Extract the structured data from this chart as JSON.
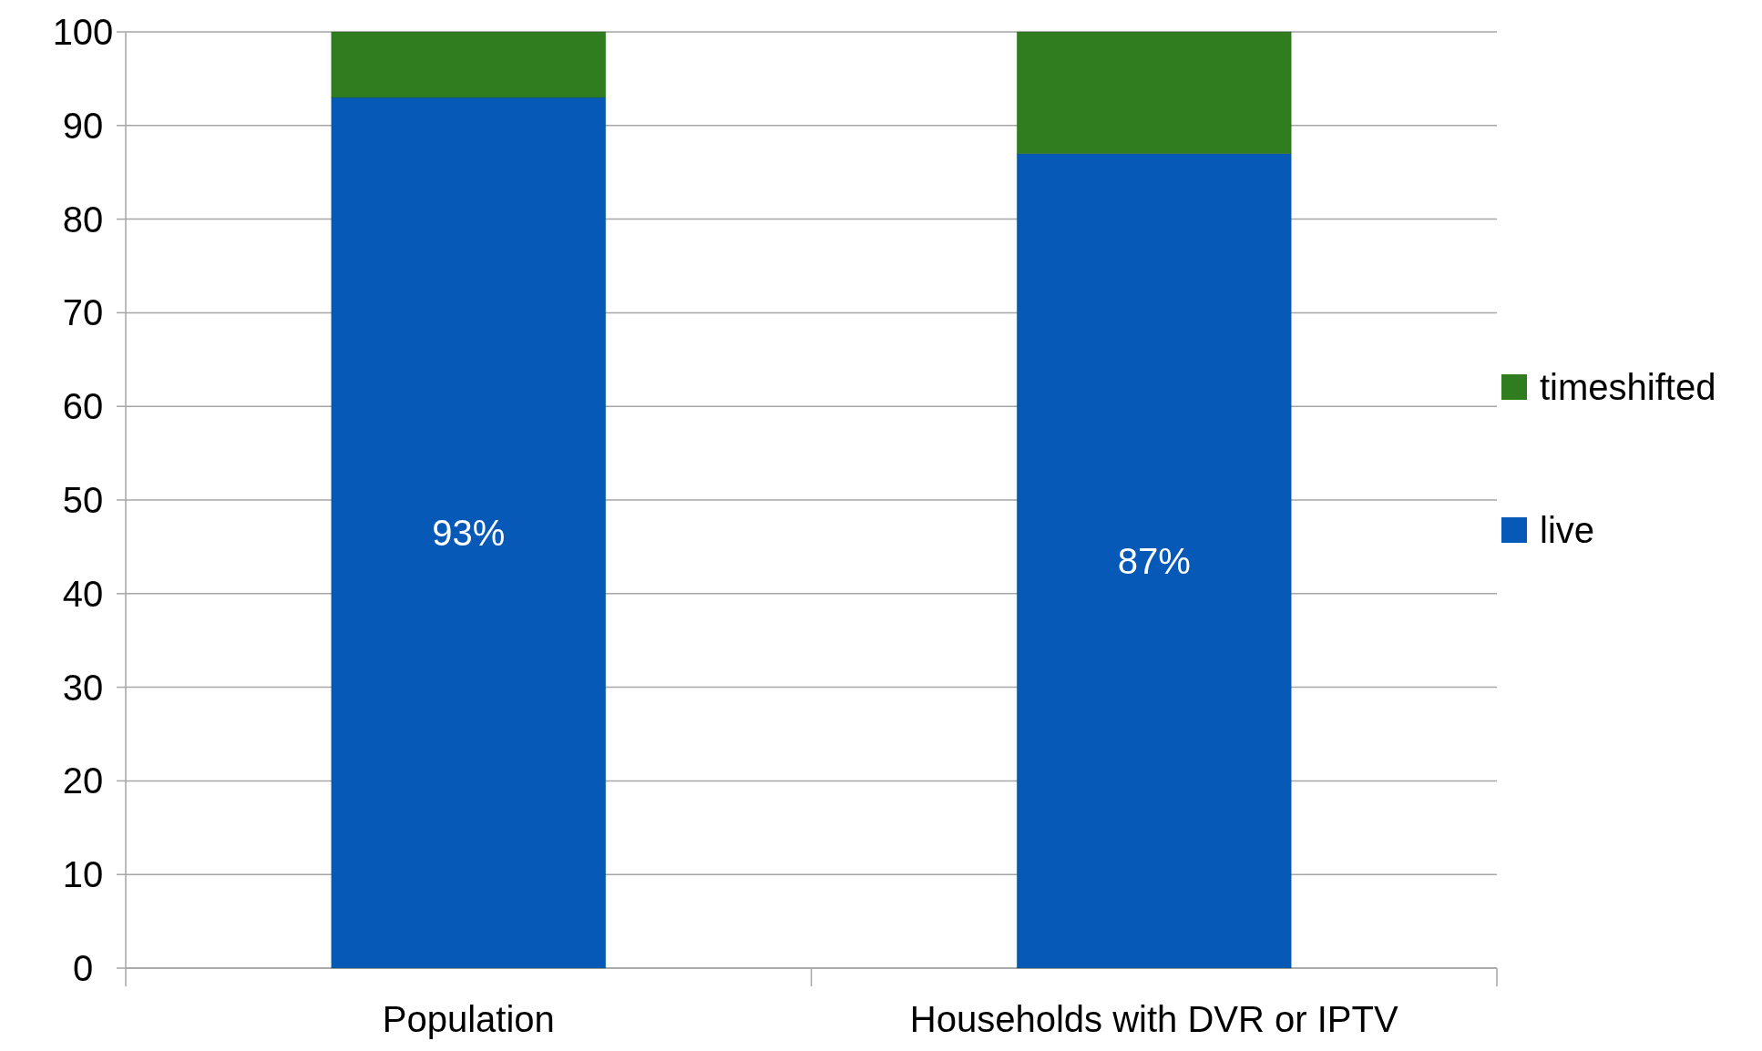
{
  "chart_data": {
    "type": "bar",
    "stacked": true,
    "categories": [
      "Population",
      "Households with DVR or IPTV"
    ],
    "series": [
      {
        "name": "live",
        "color": "#0759b8",
        "values": [
          93,
          87
        ],
        "value_labels": [
          "93%",
          "87%"
        ]
      },
      {
        "name": "timeshifted",
        "color": "#2f7d1f",
        "values": [
          7,
          13
        ]
      }
    ],
    "ylim": [
      0,
      100
    ],
    "yticks": [
      0,
      10,
      20,
      30,
      40,
      50,
      60,
      70,
      80,
      90,
      100
    ],
    "grid": "y",
    "legend": "right"
  }
}
